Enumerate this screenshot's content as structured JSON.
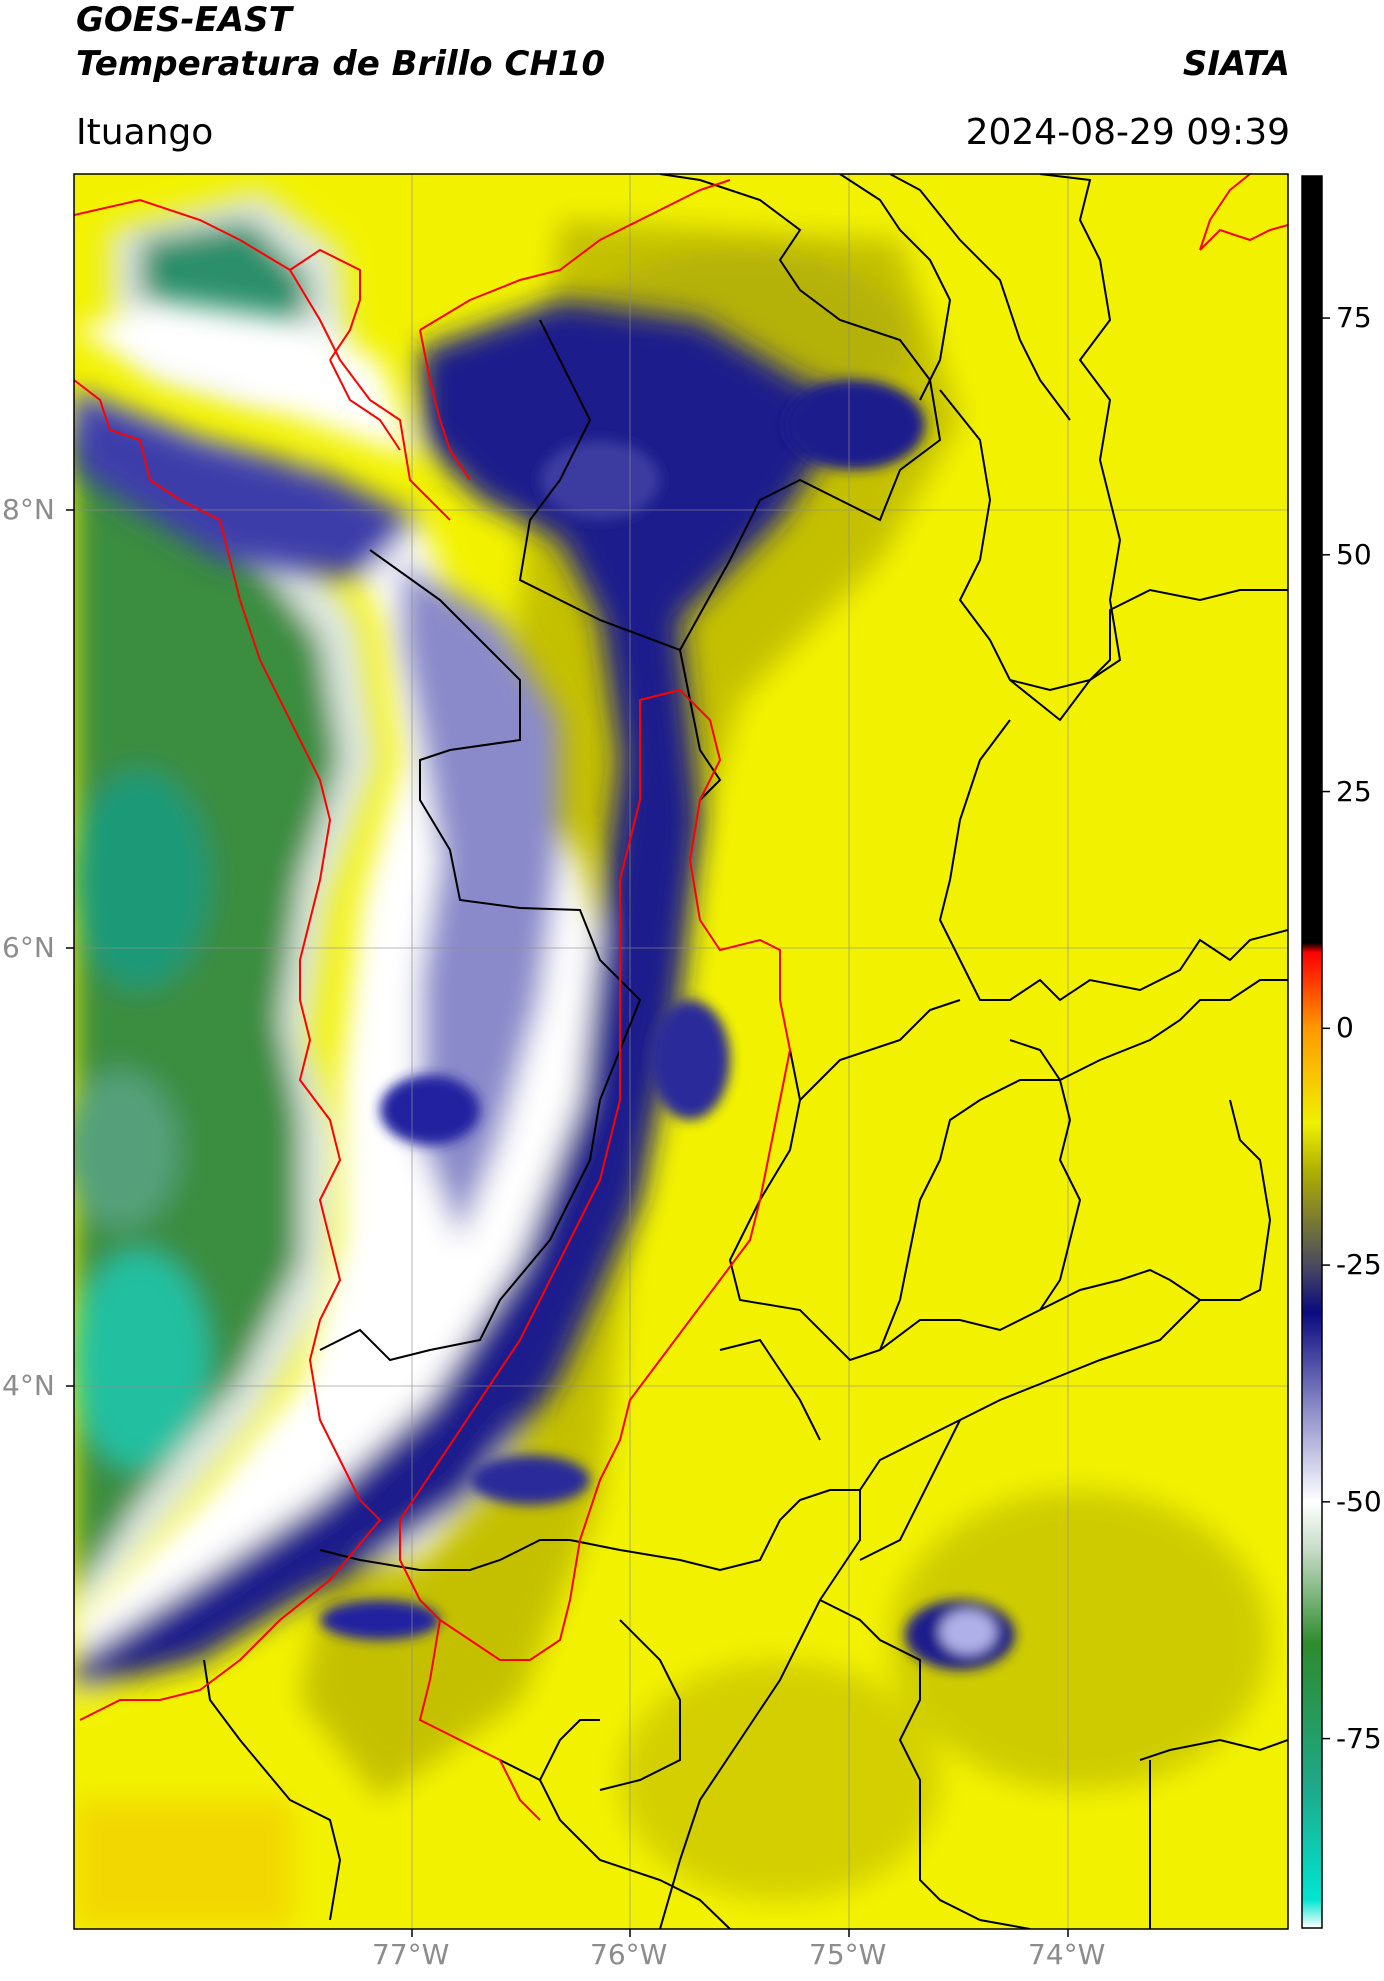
{
  "header": {
    "satellite": "GOES-EAST",
    "product": "Temperatura de Brillo CH10",
    "organization": "SIATA",
    "location": "Ituango",
    "datetime": "2024-08-29 09:39"
  },
  "axes": {
    "lat_labels": [
      "8°N",
      "6°N",
      "4°N"
    ],
    "lon_labels": [
      "77°W",
      "76°W",
      "75°W",
      "74°W"
    ]
  },
  "colorbar": {
    "tick_labels": [
      "75",
      "50",
      "25",
      "0",
      "-25",
      "-50",
      "-75"
    ],
    "range": [
      -95,
      90
    ],
    "stops": [
      {
        "value": -95,
        "color": "#ffffff"
      },
      {
        "value": -92,
        "color": "#00e5d0"
      },
      {
        "value": -80,
        "color": "#1fa88a"
      },
      {
        "value": -65,
        "color": "#2e8b2e"
      },
      {
        "value": -55,
        "color": "#c8dcc8"
      },
      {
        "value": -50,
        "color": "#ffffff"
      },
      {
        "value": -40,
        "color": "#8a8ac8"
      },
      {
        "value": -30,
        "color": "#0a0a80"
      },
      {
        "value": -25,
        "color": "#4a4a60"
      },
      {
        "value": -15,
        "color": "#b0b000"
      },
      {
        "value": -10,
        "color": "#f0f000"
      },
      {
        "value": 0,
        "color": "#ff9900"
      },
      {
        "value": 8,
        "color": "#ff0000"
      },
      {
        "value": 9,
        "color": "#000000"
      },
      {
        "value": 90,
        "color": "#000000"
      }
    ]
  },
  "colors": {
    "ocean_cold": "#2e8b4e",
    "cloud_cold": "#0a0a80",
    "land_warm": "#f0f000",
    "watershed_boundary": "#ff0000",
    "admin_boundary": "#000000"
  }
}
